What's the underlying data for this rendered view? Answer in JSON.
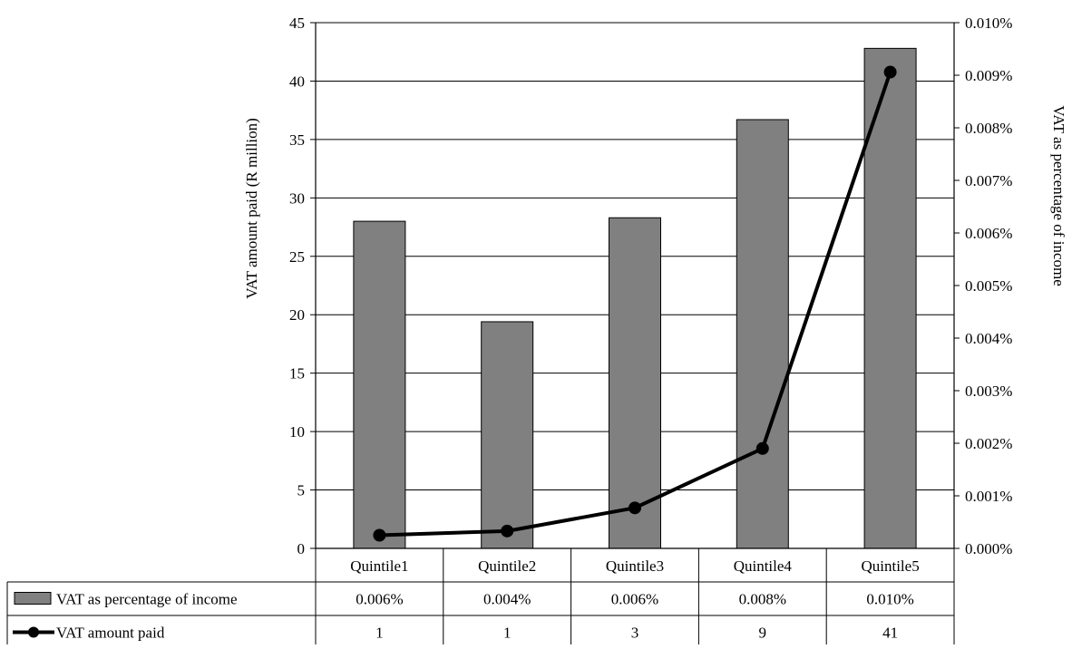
{
  "chart_data": {
    "type": "bar",
    "categories": [
      "Quintile1",
      "Quintile2",
      "Quintile3",
      "Quintile4",
      "Quintile5"
    ],
    "series": [
      {
        "name": "VAT as percentage of income",
        "kind": "bar",
        "axis": "left",
        "values": [
          28.0,
          19.4,
          28.3,
          36.7,
          42.8
        ],
        "table_values": [
          "0.006%",
          "0.004%",
          "0.006%",
          "0.008%",
          "0.010%"
        ],
        "color": "#808080"
      },
      {
        "name": "VAT amount paid",
        "kind": "line",
        "axis": "right",
        "values": [
          0.00025,
          0.00033,
          0.00077,
          0.0019,
          0.00906
        ],
        "table_values": [
          "1",
          "1",
          "3",
          "9",
          "41"
        ],
        "color": "#000000"
      }
    ],
    "title": "",
    "ylabel": "VAT amount paid (R million)",
    "y2label": "VAT as percentage of income",
    "ylim": [
      0,
      45
    ],
    "y_ticks": [
      0,
      5,
      10,
      15,
      20,
      25,
      30,
      35,
      40,
      45
    ],
    "y_tick_labels": [
      "0",
      "5",
      "10",
      "15",
      "20",
      "25",
      "30",
      "35",
      "40",
      "45"
    ],
    "y2lim": [
      0,
      0.01
    ],
    "y2_ticks": [
      0,
      0.001,
      0.002,
      0.003,
      0.004,
      0.005,
      0.006,
      0.007,
      0.008,
      0.009,
      0.01
    ],
    "y2_tick_labels": [
      "0.000%",
      "0.001%",
      "0.002%",
      "0.003%",
      "0.004%",
      "0.005%",
      "0.006%",
      "0.007%",
      "0.008%",
      "0.009%",
      "0.010%"
    ],
    "grid": true,
    "legend": "data-table-bottom"
  }
}
